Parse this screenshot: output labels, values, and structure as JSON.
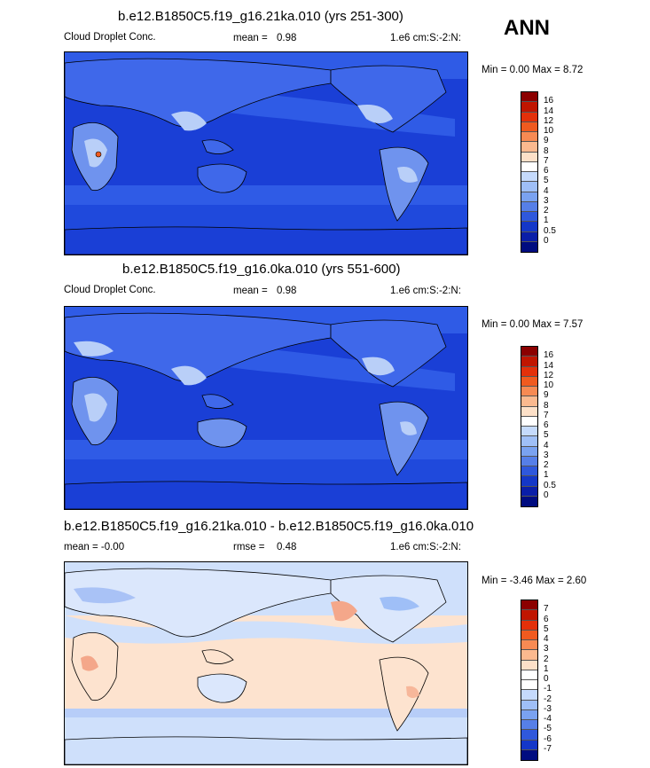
{
  "season": "ANN",
  "panels": [
    {
      "title": "b.e12.B1850C5.f19_g16.21ka.010 (yrs 251-300)",
      "left_label": "Cloud Droplet Conc.",
      "mid_label": "mean =",
      "mid_value": "0.98",
      "right_label": "1.e6 cm:S:-2:N:",
      "minmax": "Min =   0.00 Max =   8.72",
      "cbar_labels": [
        "16",
        "14",
        "12",
        "10",
        "9",
        "8",
        "7",
        "6",
        "5",
        "4",
        "3",
        "2",
        "1",
        "0.5",
        "0"
      ],
      "cbar_colors": [
        "#8b0000",
        "#c01500",
        "#e3300a",
        "#f05a1f",
        "#f78a53",
        "#fbb98f",
        "#fde0c8",
        "#ffffff",
        "#c5dafc",
        "#9fbff7",
        "#7aa2f0",
        "#567fe8",
        "#2f58dc",
        "#1437c8",
        "#0a1ea8",
        "#000c80"
      ]
    },
    {
      "title": "b.e12.B1850C5.f19_g16.0ka.010 (yrs 551-600)",
      "left_label": "Cloud Droplet Conc.",
      "mid_label": "mean =",
      "mid_value": "0.98",
      "right_label": "1.e6 cm:S:-2:N:",
      "minmax": "Min =   0.00 Max =   7.57",
      "cbar_labels": [
        "16",
        "14",
        "12",
        "10",
        "9",
        "8",
        "7",
        "6",
        "5",
        "4",
        "3",
        "2",
        "1",
        "0.5",
        "0"
      ],
      "cbar_colors": [
        "#8b0000",
        "#c01500",
        "#e3300a",
        "#f05a1f",
        "#f78a53",
        "#fbb98f",
        "#fde0c8",
        "#ffffff",
        "#c5dafc",
        "#9fbff7",
        "#7aa2f0",
        "#567fe8",
        "#2f58dc",
        "#1437c8",
        "#0a1ea8",
        "#000c80"
      ]
    },
    {
      "title": "b.e12.B1850C5.f19_g16.21ka.010 - b.e12.B1850C5.f19_g16.0ka.010",
      "left_label": "mean =  -0.00",
      "mid_label": "rmse =",
      "mid_value": "0.48",
      "right_label": "1.e6 cm:S:-2:N:",
      "minmax": "Min =  -3.46 Max =   2.60",
      "cbar_labels": [
        "7",
        "6",
        "5",
        "4",
        "3",
        "2",
        "1",
        "0",
        "-1",
        "-2",
        "-3",
        "-4",
        "-5",
        "-6",
        "-7"
      ],
      "cbar_colors": [
        "#8b0000",
        "#c01500",
        "#e3300a",
        "#f05a1f",
        "#f78a53",
        "#fbb98f",
        "#fde0c8",
        "#ffffff",
        "#ffffff",
        "#c5dafc",
        "#9fbff7",
        "#7aa2f0",
        "#567fe8",
        "#2f58dc",
        "#1437c8",
        "#000c80"
      ]
    }
  ],
  "colors": {
    "ocean_dark": "#1a3fd6",
    "ocean_mid": "#2f5be6",
    "land_light": "#6f93ee",
    "land_pale": "#b9cff8",
    "diff_neg": "#cfe0fb",
    "diff_pos": "#fde3cf"
  }
}
